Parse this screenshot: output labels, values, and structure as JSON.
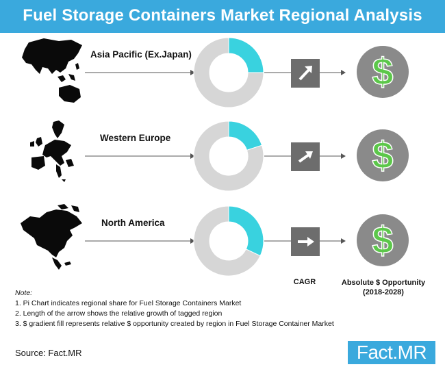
{
  "title": "Fuel Storage Containers Market Regional Analysis",
  "colors": {
    "accent": "#3aa9dd",
    "share_highlight": "#39d2df",
    "share_rest": "#d6d6d6",
    "arrow_box": "#6d6d6d",
    "dollar_bg": "#8a8a8a",
    "dollar_green": "#5cc74a"
  },
  "chart_data": [
    {
      "type": "pie",
      "region": "Asia Pacific (Ex.Japan)",
      "values": [
        25,
        75
      ],
      "cagr_icon": "arrow-up-right-icon",
      "opportunity_icon": "dollar-icon"
    },
    {
      "type": "pie",
      "region": "Western Europe",
      "values": [
        20,
        80
      ],
      "cagr_icon": "arrow-up-right-icon",
      "opportunity_icon": "dollar-icon"
    },
    {
      "type": "pie",
      "region": "North America",
      "values": [
        32,
        68
      ],
      "cagr_icon": "arrow-right-icon",
      "opportunity_icon": "dollar-icon"
    }
  ],
  "columns": {
    "cagr": "CAGR",
    "absolute_line1": "Absolute $ Opportunity",
    "absolute_line2": "(2018-2028)"
  },
  "notes": {
    "head": "Note:",
    "items": [
      "1.  Pi Chart indicates regional share for Fuel Storage Containers Market",
      "2.  Length of the arrow shows the relative growth of tagged region",
      "3.  $ gradient fill represents relative $ opportunity created by region in Fuel Storage Container Market"
    ]
  },
  "source": "Source: Fact.MR",
  "logo": {
    "part1": "Fact",
    "part2": ".MR"
  }
}
